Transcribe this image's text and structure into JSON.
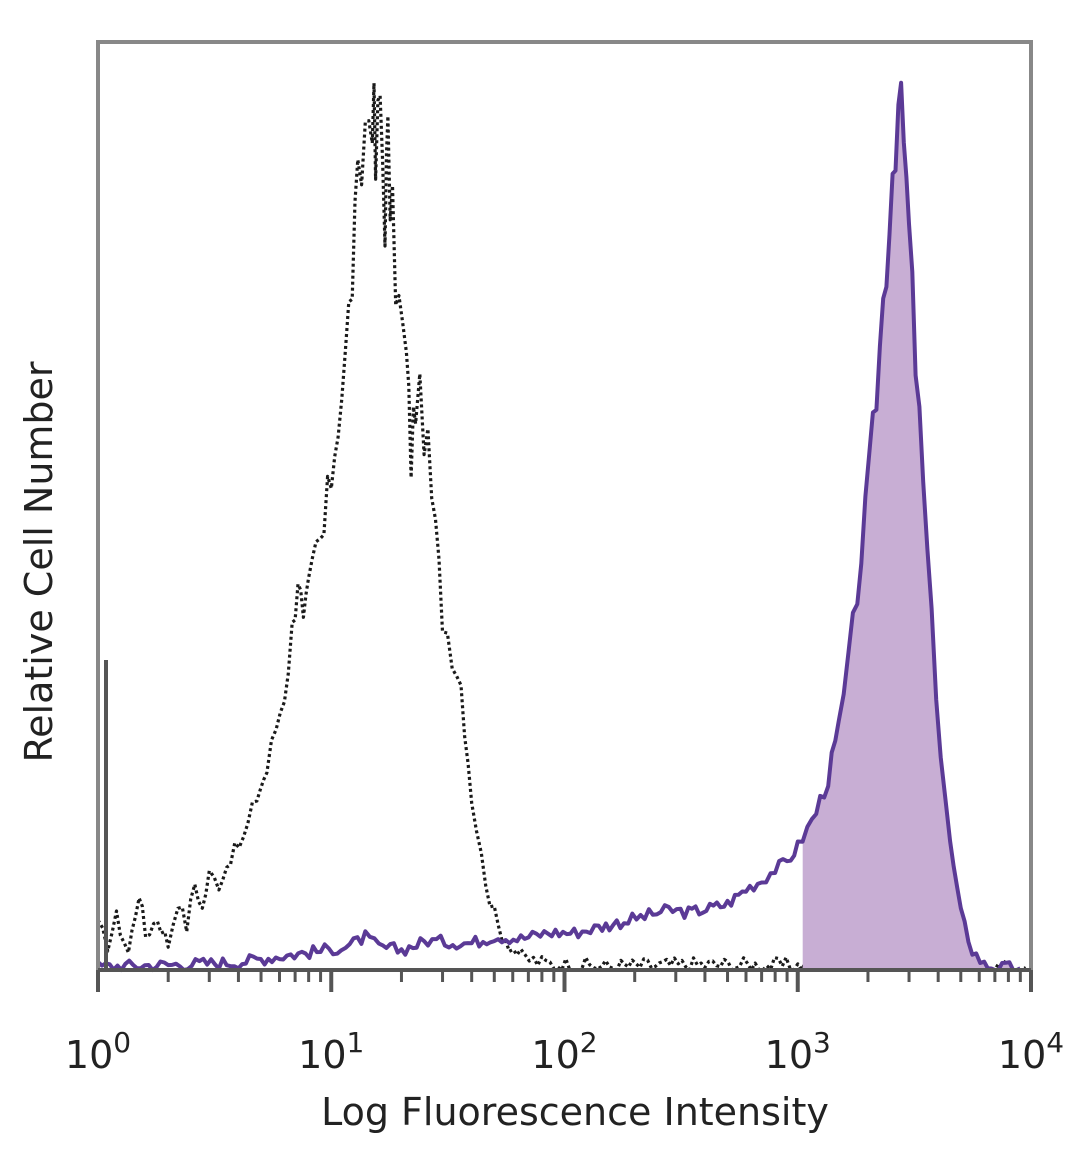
{
  "chart_data": {
    "type": "area",
    "title": "",
    "xlabel": "Log Fluorescence Intensity",
    "ylabel": "Relative Cell Number",
    "x_scale": "log",
    "xlim": [
      1,
      10000
    ],
    "ylim": [
      0,
      100
    ],
    "grid": false,
    "legend": "none",
    "x_ticks": [
      {
        "value": 1,
        "base": "10",
        "exp": "0"
      },
      {
        "value": 10,
        "base": "10",
        "exp": "1"
      },
      {
        "value": 100,
        "base": "10",
        "exp": "2"
      },
      {
        "value": 1000,
        "base": "10",
        "exp": "3"
      },
      {
        "value": 10000,
        "base": "10",
        "exp": "4"
      }
    ],
    "series": [
      {
        "style": "dotted-line",
        "color": "#1a1a1a",
        "points": [
          [
            1.0,
            5
          ],
          [
            1.1,
            3
          ],
          [
            1.2,
            6
          ],
          [
            1.35,
            2
          ],
          [
            1.5,
            9
          ],
          [
            1.6,
            4
          ],
          [
            1.8,
            6
          ],
          [
            2.0,
            3
          ],
          [
            2.2,
            8
          ],
          [
            2.4,
            5
          ],
          [
            2.6,
            10
          ],
          [
            2.8,
            7
          ],
          [
            3.0,
            11
          ],
          [
            3.3,
            10
          ],
          [
            3.7,
            13
          ],
          [
            4.2,
            15
          ],
          [
            4.8,
            20
          ],
          [
            5.3,
            23
          ],
          [
            5.8,
            28
          ],
          [
            6.3,
            32
          ],
          [
            6.8,
            39
          ],
          [
            7.2,
            46
          ],
          [
            7.6,
            39
          ],
          [
            8.0,
            43
          ],
          [
            8.6,
            48
          ],
          [
            9.3,
            50
          ],
          [
            10.0,
            57
          ],
          [
            10.7,
            64
          ],
          [
            11.5,
            70
          ],
          [
            12.3,
            80
          ],
          [
            13.0,
            88
          ],
          [
            14.0,
            97
          ],
          [
            15.0,
            101
          ],
          [
            15.5,
            92
          ],
          [
            16.2,
            100
          ],
          [
            17.0,
            88
          ],
          [
            17.5,
            94
          ],
          [
            18.3,
            85
          ],
          [
            19.5,
            76
          ],
          [
            21.0,
            70
          ],
          [
            22.0,
            59
          ],
          [
            23.0,
            66
          ],
          [
            25.0,
            63
          ],
          [
            28.0,
            50
          ],
          [
            30.0,
            41
          ],
          [
            33.0,
            37
          ],
          [
            36.0,
            33
          ],
          [
            40.0,
            20
          ],
          [
            44.0,
            13
          ],
          [
            48.0,
            8
          ],
          [
            52.0,
            5
          ],
          [
            58.0,
            3
          ],
          [
            65.0,
            1.5
          ],
          [
            80.0,
            0.8
          ],
          [
            150,
            0.4
          ],
          [
            400,
            0.6
          ],
          [
            1000,
            0.5
          ],
          [
            3000,
            1.0
          ],
          [
            6000,
            0.5
          ],
          [
            9500,
            0.3
          ]
        ]
      },
      {
        "style": "solid-filled",
        "color": "#5b3a96",
        "fill": "#c8aed4",
        "points": [
          [
            1.0,
            0.4
          ],
          [
            2.0,
            0.6
          ],
          [
            4.0,
            0.9
          ],
          [
            6.0,
            1.6
          ],
          [
            9.0,
            2.2
          ],
          [
            12.0,
            2.8
          ],
          [
            14.0,
            3.8
          ],
          [
            16.0,
            2.6
          ],
          [
            20.0,
            2.3
          ],
          [
            26.0,
            3.4
          ],
          [
            32.0,
            3.2
          ],
          [
            40.0,
            3.1
          ],
          [
            50.0,
            3.9
          ],
          [
            65.0,
            3.6
          ],
          [
            85.0,
            4.3
          ],
          [
            110,
            4.3
          ],
          [
            140,
            4.9
          ],
          [
            180,
            5.6
          ],
          [
            230,
            6.3
          ],
          [
            280,
            6.9
          ],
          [
            340,
            6.6
          ],
          [
            420,
            7.1
          ],
          [
            500,
            7.6
          ],
          [
            600,
            9.3
          ],
          [
            700,
            10.3
          ],
          [
            800,
            11.6
          ],
          [
            900,
            12.4
          ],
          [
            1000,
            14.2
          ],
          [
            1100,
            16.2
          ],
          [
            1200,
            18.2
          ],
          [
            1350,
            22.0
          ],
          [
            1500,
            27.8
          ],
          [
            1650,
            35.0
          ],
          [
            1800,
            43.6
          ],
          [
            1950,
            52.2
          ],
          [
            2100,
            61.3
          ],
          [
            2250,
            71.6
          ],
          [
            2400,
            81.9
          ],
          [
            2550,
            92.2
          ],
          [
            2700,
            100
          ],
          [
            2850,
            95.0
          ],
          [
            3000,
            84.6
          ],
          [
            3200,
            70.0
          ],
          [
            3450,
            55.5
          ],
          [
            3750,
            39.8
          ],
          [
            4100,
            25.0
          ],
          [
            4500,
            14.5
          ],
          [
            5000,
            6.5
          ],
          [
            5600,
            2.3
          ],
          [
            6300,
            0.6
          ],
          [
            7000,
            0.3
          ],
          [
            9000,
            0.2
          ]
        ]
      }
    ]
  }
}
